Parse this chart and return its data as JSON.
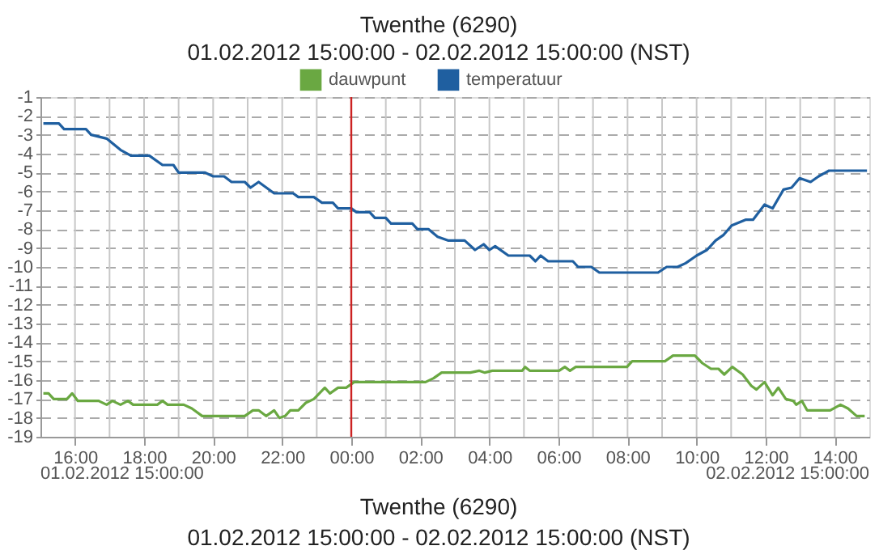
{
  "chart_data": {
    "type": "line",
    "title": "Twenthe (6290)",
    "subtitle": "01.02.2012 15:00:00 - 02.02.2012 15:00:00 (NST)",
    "xlim": [
      "2012-02-01T15:00",
      "2012-02-02T15:00"
    ],
    "xticks": [
      {
        "value": "2012-02-01T16:00",
        "label": "16:00"
      },
      {
        "value": "2012-02-01T17:00",
        "label": null
      },
      {
        "value": "2012-02-01T18:00",
        "label": "18:00"
      },
      {
        "value": "2012-02-01T19:00",
        "label": null
      },
      {
        "value": "2012-02-01T20:00",
        "label": "20:00"
      },
      {
        "value": "2012-02-01T21:00",
        "label": null
      },
      {
        "value": "2012-02-01T22:00",
        "label": "22:00"
      },
      {
        "value": "2012-02-01T23:00",
        "label": null
      },
      {
        "value": "2012-02-02T00:00",
        "label": "00:00"
      },
      {
        "value": "2012-02-02T01:00",
        "label": null
      },
      {
        "value": "2012-02-02T02:00",
        "label": "02:00"
      },
      {
        "value": "2012-02-02T03:00",
        "label": null
      },
      {
        "value": "2012-02-02T04:00",
        "label": "04:00"
      },
      {
        "value": "2012-02-02T05:00",
        "label": null
      },
      {
        "value": "2012-02-02T06:00",
        "label": "06:00"
      },
      {
        "value": "2012-02-02T07:00",
        "label": null
      },
      {
        "value": "2012-02-02T08:00",
        "label": "08:00"
      },
      {
        "value": "2012-02-02T09:00",
        "label": null
      },
      {
        "value": "2012-02-02T10:00",
        "label": "10:00"
      },
      {
        "value": "2012-02-02T11:00",
        "label": null
      },
      {
        "value": "2012-02-02T12:00",
        "label": "12:00"
      },
      {
        "value": "2012-02-02T13:00",
        "label": null
      },
      {
        "value": "2012-02-02T14:00",
        "label": "14:00"
      }
    ],
    "ylim": [
      -19,
      -1
    ],
    "yticks": [
      -19,
      -18,
      -17,
      -16,
      -15,
      -14,
      -13,
      -12,
      -11,
      -10,
      -9,
      -8,
      -7,
      -6,
      -5,
      -4,
      -3,
      -2,
      -1
    ],
    "grid": true,
    "legend": "top",
    "marker": "none",
    "line_style": "solid",
    "ref_lines": [
      {
        "axis": "x",
        "value": "2012-02-02T00:00",
        "color": "#cc2222"
      }
    ],
    "annotations": [
      "01.02.2012 15:00:00",
      "02.02.2012 15:00:00",
      "Twenthe (6290)",
      "01.02.2012 15:00:00 - 02.02.2012 15:00:00 (NST)"
    ],
    "series": [
      {
        "name": "dauwpunt",
        "color": "#6aa842",
        "x": [
          "2012-02-01T15:05",
          "2012-02-01T15:14",
          "2012-02-01T15:23",
          "2012-02-01T15:46",
          "2012-02-01T15:55",
          "2012-02-01T16:05",
          "2012-02-01T16:41",
          "2012-02-01T16:55",
          "2012-02-01T17:05",
          "2012-02-01T17:19",
          "2012-02-01T17:32",
          "2012-02-01T17:41",
          "2012-02-01T18:23",
          "2012-02-01T18:32",
          "2012-02-01T18:41",
          "2012-02-01T19:09",
          "2012-02-01T19:23",
          "2012-02-01T19:41",
          "2012-02-01T20:55",
          "2012-02-01T21:09",
          "2012-02-01T21:19",
          "2012-02-01T21:32",
          "2012-02-01T21:46",
          "2012-02-01T21:55",
          "2012-02-01T22:05",
          "2012-02-01T22:14",
          "2012-02-01T22:28",
          "2012-02-01T22:41",
          "2012-02-01T22:55",
          "2012-02-01T23:14",
          "2012-02-01T23:23",
          "2012-02-01T23:37",
          "2012-02-01T23:51",
          "2012-02-02T00:05",
          "2012-02-02T02:09",
          "2012-02-02T02:23",
          "2012-02-02T02:37",
          "2012-02-02T02:48",
          "2012-02-02T03:27",
          "2012-02-02T03:42",
          "2012-02-02T03:52",
          "2012-02-02T04:05",
          "2012-02-02T04:57",
          "2012-02-02T05:02",
          "2012-02-02T05:10",
          "2012-02-02T06:01",
          "2012-02-02T06:11",
          "2012-02-02T06:20",
          "2012-02-02T06:30",
          "2012-02-02T07:59",
          "2012-02-02T08:08",
          "2012-02-02T09:05",
          "2012-02-02T09:19",
          "2012-02-02T09:57",
          "2012-02-02T10:10",
          "2012-02-02T10:25",
          "2012-02-02T10:38",
          "2012-02-02T10:48",
          "2012-02-02T11:02",
          "2012-02-02T11:20",
          "2012-02-02T11:35",
          "2012-02-02T11:44",
          "2012-02-02T11:58",
          "2012-02-02T12:12",
          "2012-02-02T12:22",
          "2012-02-02T12:35",
          "2012-02-02T12:48",
          "2012-02-02T12:53",
          "2012-02-02T13:03",
          "2012-02-02T13:12",
          "2012-02-02T13:52",
          "2012-02-02T14:10",
          "2012-02-02T14:23",
          "2012-02-02T14:38",
          "2012-02-02T14:52"
        ],
        "values": [
          -16.7,
          -16.7,
          -17.0,
          -17.0,
          -16.7,
          -17.1,
          -17.1,
          -17.3,
          -17.1,
          -17.3,
          -17.1,
          -17.3,
          -17.3,
          -17.1,
          -17.3,
          -17.3,
          -17.5,
          -17.9,
          -17.9,
          -17.6,
          -17.6,
          -17.9,
          -17.6,
          -18.0,
          -17.9,
          -17.6,
          -17.6,
          -17.2,
          -17.0,
          -16.4,
          -16.7,
          -16.4,
          -16.4,
          -16.1,
          -16.1,
          -15.9,
          -15.6,
          -15.6,
          -15.6,
          -15.5,
          -15.6,
          -15.5,
          -15.5,
          -15.3,
          -15.5,
          -15.5,
          -15.3,
          -15.5,
          -15.3,
          -15.3,
          -15.0,
          -15.0,
          -14.7,
          -14.7,
          -15.1,
          -15.4,
          -15.4,
          -15.7,
          -15.3,
          -15.7,
          -16.3,
          -16.5,
          -16.1,
          -16.8,
          -16.4,
          -17.0,
          -17.1,
          -17.3,
          -17.1,
          -17.6,
          -17.6,
          -17.3,
          -17.5,
          -17.9,
          -17.9
        ]
      },
      {
        "name": "temperatuur",
        "color": "#1f5fa0",
        "x": [
          "2012-02-01T15:05",
          "2012-02-01T15:32",
          "2012-02-01T15:41",
          "2012-02-01T16:19",
          "2012-02-01T16:28",
          "2012-02-01T16:55",
          "2012-02-01T17:19",
          "2012-02-01T17:37",
          "2012-02-01T18:09",
          "2012-02-01T18:32",
          "2012-02-01T18:51",
          "2012-02-01T19:00",
          "2012-02-01T19:46",
          "2012-02-01T20:00",
          "2012-02-01T20:19",
          "2012-02-01T20:32",
          "2012-02-01T20:55",
          "2012-02-01T21:05",
          "2012-02-01T21:19",
          "2012-02-01T21:46",
          "2012-02-01T22:19",
          "2012-02-01T22:28",
          "2012-02-01T22:55",
          "2012-02-01T23:09",
          "2012-02-01T23:28",
          "2012-02-01T23:37",
          "2012-02-02T00:00",
          "2012-02-02T00:09",
          "2012-02-02T00:32",
          "2012-02-02T00:41",
          "2012-02-02T01:00",
          "2012-02-02T01:09",
          "2012-02-02T01:46",
          "2012-02-02T01:55",
          "2012-02-02T02:14",
          "2012-02-02T02:30",
          "2012-02-02T02:48",
          "2012-02-02T03:17",
          "2012-02-02T03:35",
          "2012-02-02T03:50",
          "2012-02-02T04:00",
          "2012-02-02T04:10",
          "2012-02-02T04:33",
          "2012-02-02T05:10",
          "2012-02-02T05:20",
          "2012-02-02T05:29",
          "2012-02-02T05:42",
          "2012-02-02T06:25",
          "2012-02-02T06:34",
          "2012-02-02T06:57",
          "2012-02-02T07:11",
          "2012-02-02T08:53",
          "2012-02-02T09:08",
          "2012-02-02T09:27",
          "2012-02-02T09:41",
          "2012-02-02T10:00",
          "2012-02-02T10:18",
          "2012-02-02T10:33",
          "2012-02-02T10:47",
          "2012-02-02T11:01",
          "2012-02-02T11:25",
          "2012-02-02T11:38",
          "2012-02-02T11:58",
          "2012-02-02T12:12",
          "2012-02-02T12:31",
          "2012-02-02T12:45",
          "2012-02-02T12:59",
          "2012-02-02T13:18",
          "2012-02-02T13:32",
          "2012-02-02T13:50",
          "2012-02-02T14:56"
        ],
        "values": [
          -2.4,
          -2.4,
          -2.7,
          -2.7,
          -3.0,
          -3.2,
          -3.8,
          -4.1,
          -4.1,
          -4.6,
          -4.6,
          -5.0,
          -5.0,
          -5.2,
          -5.2,
          -5.5,
          -5.5,
          -5.8,
          -5.5,
          -6.1,
          -6.1,
          -6.3,
          -6.3,
          -6.6,
          -6.6,
          -6.9,
          -6.9,
          -7.1,
          -7.1,
          -7.4,
          -7.4,
          -7.7,
          -7.7,
          -8.0,
          -8.0,
          -8.4,
          -8.6,
          -8.6,
          -9.1,
          -8.8,
          -9.1,
          -8.9,
          -9.4,
          -9.4,
          -9.7,
          -9.4,
          -9.7,
          -9.7,
          -10.0,
          -10.0,
          -10.3,
          -10.3,
          -10.0,
          -10.0,
          -9.8,
          -9.4,
          -9.1,
          -8.6,
          -8.3,
          -7.8,
          -7.5,
          -7.5,
          -6.7,
          -6.9,
          -5.9,
          -5.8,
          -5.3,
          -5.5,
          -5.2,
          -4.9,
          -4.9
        ]
      }
    ]
  }
}
